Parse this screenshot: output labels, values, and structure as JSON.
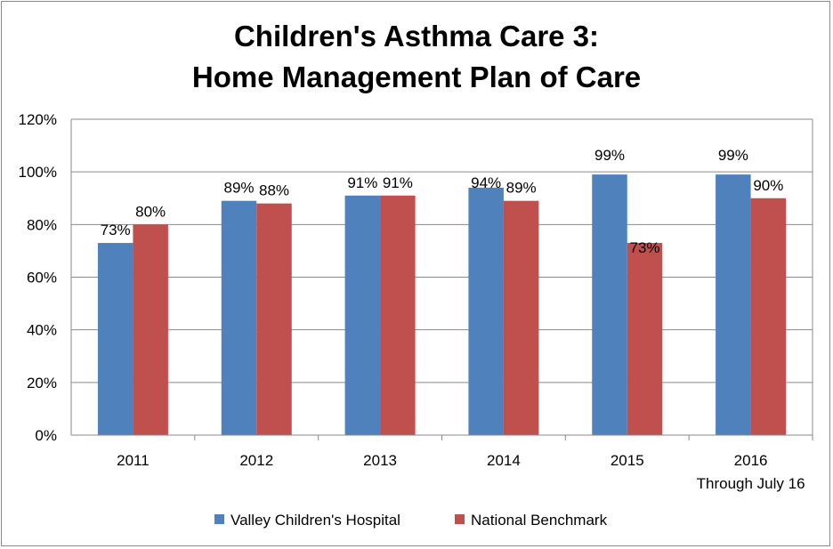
{
  "chart_data": {
    "type": "bar",
    "title": [
      "Children's Asthma Care 3:",
      "Home Management Plan of Care"
    ],
    "categories": [
      "2011",
      "2012",
      "2013",
      "2014",
      "2015",
      "2016"
    ],
    "category_sublabels": [
      "",
      "",
      "",
      "",
      "",
      "Through July 16"
    ],
    "series": [
      {
        "name": "Valley Children's Hospital",
        "color": "#4f81bd",
        "values": [
          73,
          89,
          91,
          94,
          99,
          99
        ]
      },
      {
        "name": "National Benchmark",
        "color": "#c0504d",
        "values": [
          80,
          88,
          91,
          89,
          73,
          90
        ]
      }
    ],
    "ylim": [
      0,
      120
    ],
    "yticks": [
      0,
      20,
      40,
      60,
      80,
      100,
      120
    ],
    "ytick_format": "%",
    "grid": true,
    "legend": "bottom"
  }
}
